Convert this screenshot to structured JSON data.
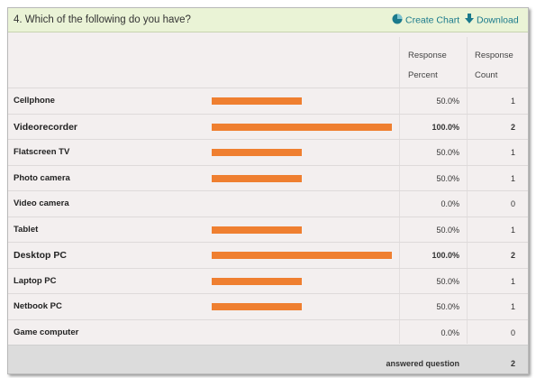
{
  "question": {
    "title": "4. Which of the following do you have?"
  },
  "actions": {
    "create_chart": "Create Chart",
    "download": "Download"
  },
  "columns": {
    "response_percent": [
      "Response",
      "Percent"
    ],
    "response_count": [
      "Response",
      "Count"
    ]
  },
  "colors": {
    "bar": "#ef7f30",
    "header_bg": "#eaf3d6",
    "link": "#1b7a8c"
  },
  "rows": [
    {
      "label": "Cellphone",
      "percent": "50.0%",
      "count": "1",
      "fraction": 0.5,
      "emphasis": false
    },
    {
      "label": "Videorecorder",
      "percent": "100.0%",
      "count": "2",
      "fraction": 1.0,
      "emphasis": true
    },
    {
      "label": "Flatscreen TV",
      "percent": "50.0%",
      "count": "1",
      "fraction": 0.5,
      "emphasis": false
    },
    {
      "label": "Photo camera",
      "percent": "50.0%",
      "count": "1",
      "fraction": 0.5,
      "emphasis": false
    },
    {
      "label": "Video camera",
      "percent": "0.0%",
      "count": "0",
      "fraction": 0.0,
      "emphasis": false
    },
    {
      "label": "Tablet",
      "percent": "50.0%",
      "count": "1",
      "fraction": 0.5,
      "emphasis": false
    },
    {
      "label": "Desktop PC",
      "percent": "100.0%",
      "count": "2",
      "fraction": 1.0,
      "emphasis": true
    },
    {
      "label": "Laptop PC",
      "percent": "50.0%",
      "count": "1",
      "fraction": 0.5,
      "emphasis": false
    },
    {
      "label": "Netbook PC",
      "percent": "50.0%",
      "count": "1",
      "fraction": 0.5,
      "emphasis": false
    },
    {
      "label": "Game computer",
      "percent": "0.0%",
      "count": "0",
      "fraction": 0.0,
      "emphasis": false
    }
  ],
  "footer": {
    "label": "answered question",
    "value": "2"
  }
}
